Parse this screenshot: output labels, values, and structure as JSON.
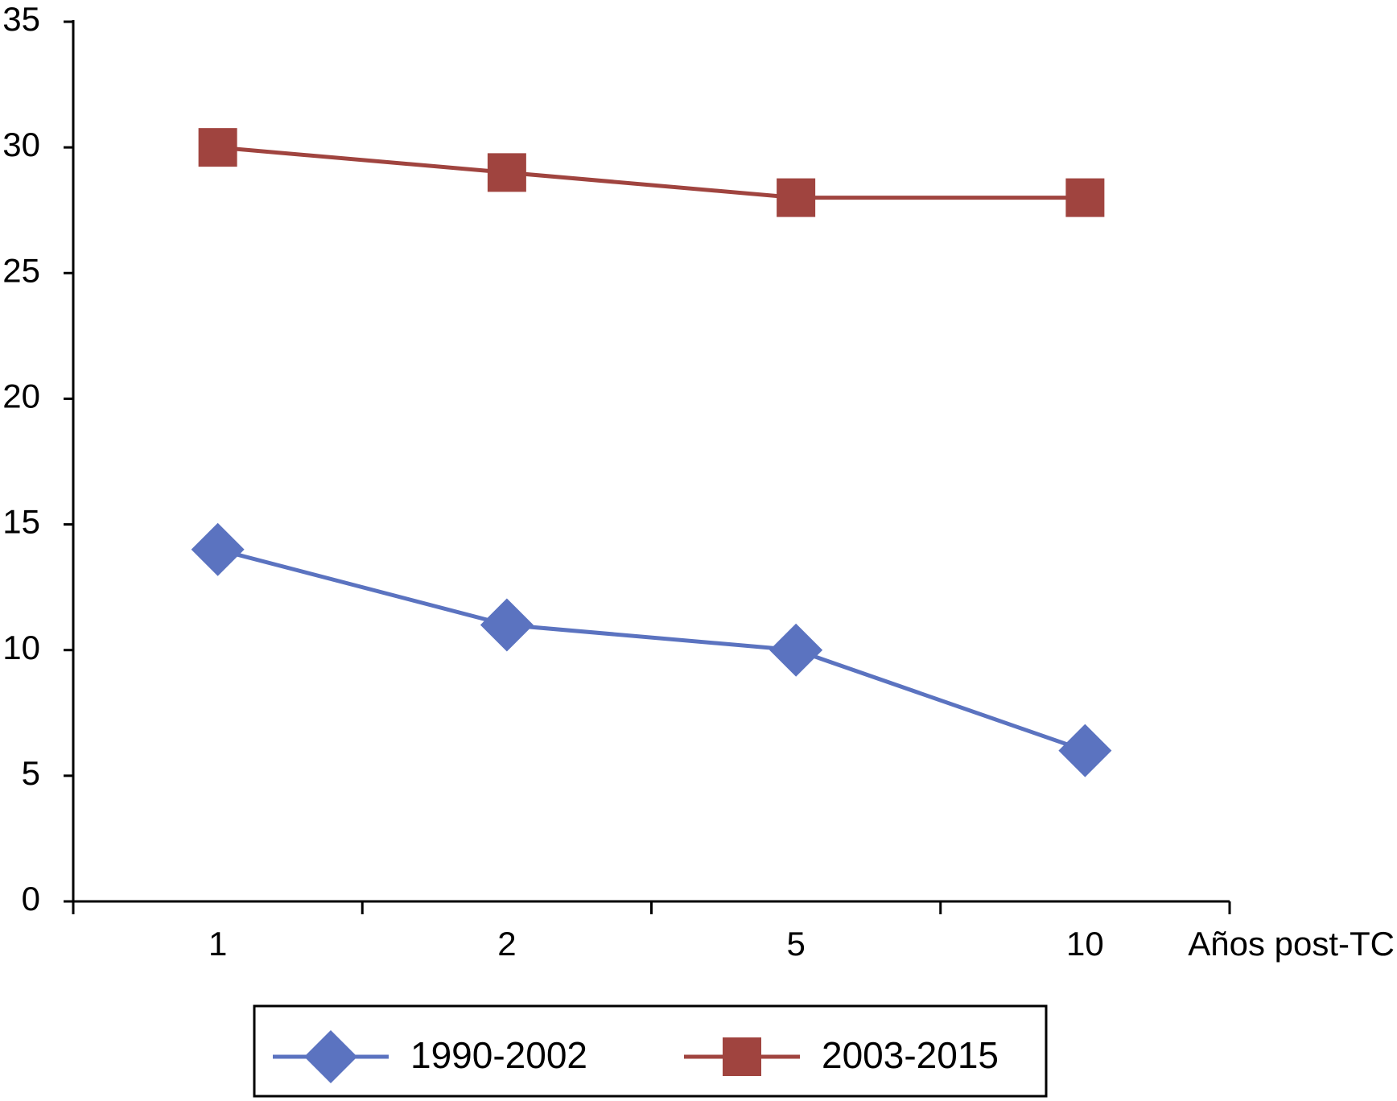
{
  "chart_data": {
    "type": "line",
    "x_label": "Años post-TC",
    "categories": [
      "1",
      "2",
      "5",
      "10"
    ],
    "series": [
      {
        "name": "1990-2002",
        "color": "#5b73c0",
        "marker": "diamond",
        "values": [
          14,
          11,
          10,
          6
        ]
      },
      {
        "name": "2003-2015",
        "color": "#a0443f",
        "marker": "square",
        "values": [
          30,
          29,
          28,
          28
        ]
      }
    ],
    "ylim": [
      0,
      35
    ],
    "yticks": [
      0,
      5,
      10,
      15,
      20,
      25,
      30,
      35
    ],
    "grid": false,
    "legend": "bottom"
  }
}
